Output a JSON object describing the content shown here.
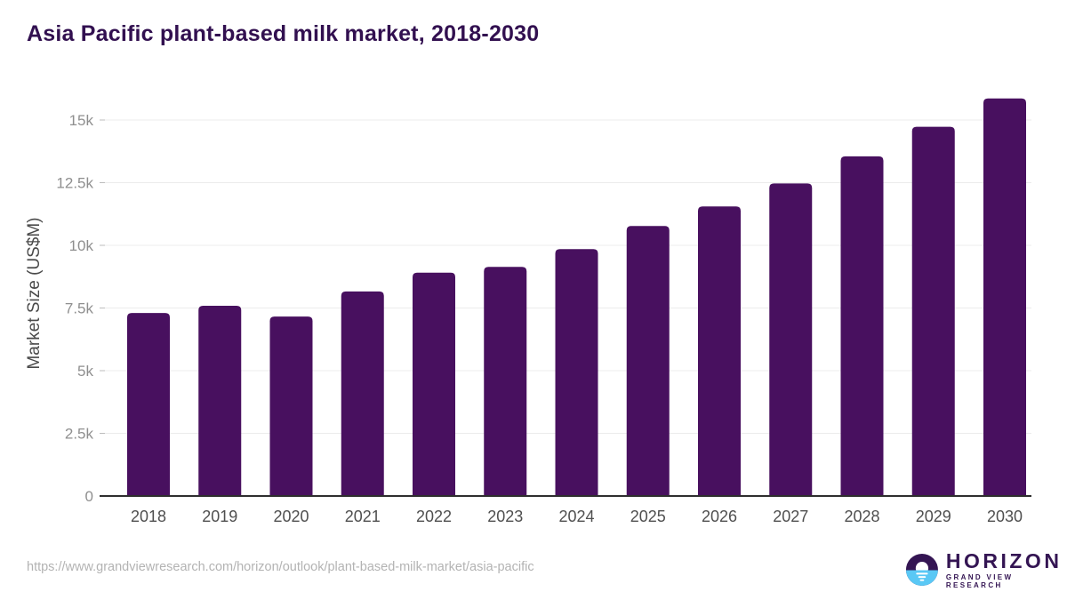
{
  "title": "Asia Pacific plant-based milk market, 2018-2030",
  "chart_data": {
    "type": "bar",
    "categories": [
      "2018",
      "2019",
      "2020",
      "2021",
      "2022",
      "2023",
      "2024",
      "2025",
      "2026",
      "2027",
      "2028",
      "2029",
      "2030"
    ],
    "values": [
      7300,
      7590,
      7160,
      8160,
      8910,
      9140,
      9850,
      10770,
      11550,
      12470,
      13550,
      14730,
      15860
    ],
    "title": "Asia Pacific plant-based milk market, 2018-2030",
    "xlabel": "",
    "ylabel": "Market Size (US$M)",
    "ytick_values": [
      0,
      2500,
      5000,
      7500,
      10000,
      12500,
      15000
    ],
    "ytick_labels": [
      "0",
      "2.5k",
      "5k",
      "7.5k",
      "10k",
      "12.5k",
      "15k"
    ],
    "ylim": [
      0,
      16000
    ],
    "grid": true,
    "legend": "none",
    "bar_color": "#48105f"
  },
  "colors": {
    "title_text": "#321050",
    "axis_label": "#4a4a4a",
    "tick_label": "#8f8f8f",
    "x_label": "#4f4f4f",
    "grid_line": "#ececec",
    "tick_mark": "#bdbdbd",
    "baseline": "#2e2e2e",
    "url_text": "#b3b3b3",
    "logo_purple": "#341553",
    "logo_blue": "#5ac8f5"
  },
  "footer": {
    "source_url": "https://www.grandviewresearch.com/horizon/outlook/plant-based-milk-market/asia-pacific",
    "logo_name": "HORIZON",
    "logo_subtitle": "GRAND VIEW RESEARCH"
  }
}
